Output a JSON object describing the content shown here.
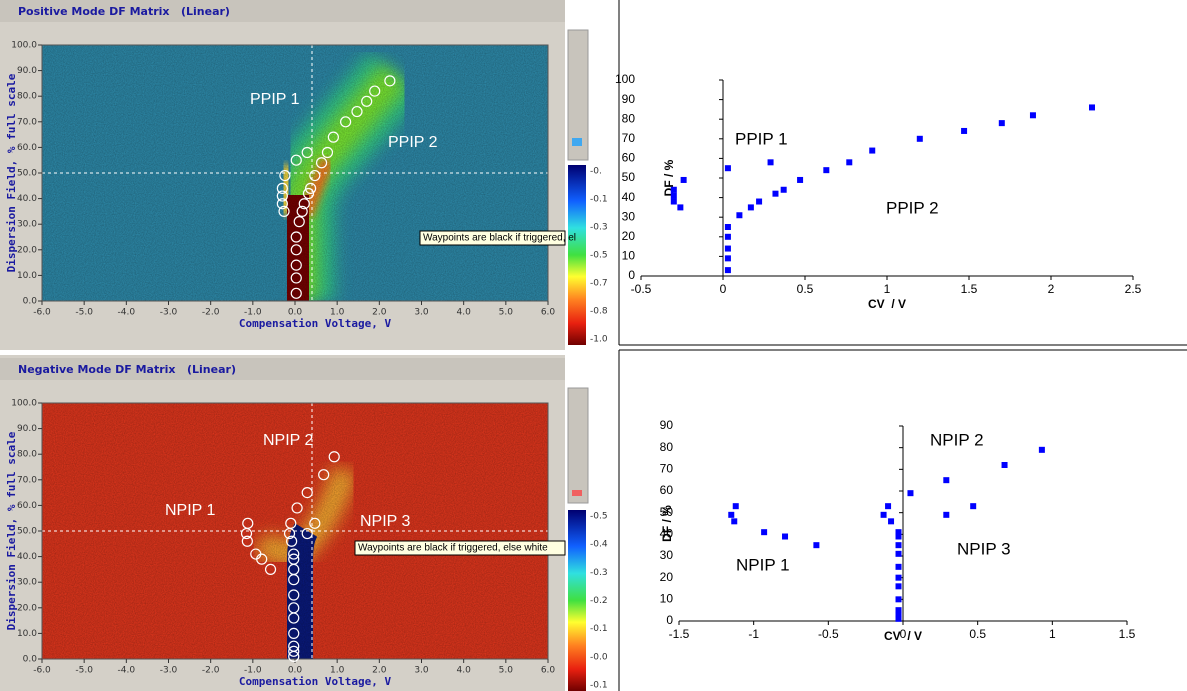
{
  "chart_data": [
    {
      "type": "heatmap",
      "title": "Positive Mode DF Matrix   (Linear)",
      "xlabel": "Compensation Voltage, V",
      "ylabel": "Dispersion Field, % full scale",
      "xlim": [
        -6,
        6
      ],
      "xticks": [
        {
          "value": -6,
          "label": "-6.0"
        },
        {
          "value": -5,
          "label": "-5.0"
        },
        {
          "value": -4,
          "label": "-4.0"
        },
        {
          "value": -3,
          "label": "-3.0"
        },
        {
          "value": -2,
          "label": "-2.0"
        },
        {
          "value": -1,
          "label": "-1.0"
        },
        {
          "value": 0,
          "label": "0.0"
        },
        {
          "value": 1,
          "label": "1.0"
        },
        {
          "value": 2,
          "label": "2.0"
        },
        {
          "value": 3,
          "label": "3.0"
        },
        {
          "value": 4,
          "label": "4.0"
        },
        {
          "value": 5,
          "label": "5.0"
        },
        {
          "value": 6,
          "label": "6.0"
        }
      ],
      "ylim": [
        0,
        100
      ],
      "yticks": [
        {
          "value": 0,
          "label": "0.0"
        },
        {
          "value": 10,
          "label": "10.0"
        },
        {
          "value": 20,
          "label": "20.0"
        },
        {
          "value": 30,
          "label": "30.0"
        },
        {
          "value": 40,
          "label": "40.0"
        },
        {
          "value": 50,
          "label": "50.0"
        },
        {
          "value": 60,
          "label": "60.0"
        },
        {
          "value": 70,
          "label": "70.0"
        },
        {
          "value": 80,
          "label": "80.0"
        },
        {
          "value": 90,
          "label": "90.0"
        },
        {
          "value": 100,
          "label": "100.0"
        }
      ],
      "colorbar_labels": [
        "-0.",
        "-0.1",
        "-0.3",
        "-0.5",
        "-0.7",
        "-0.8",
        "-1.0"
      ],
      "annotations": [
        "PPIP 1",
        "PPIP 2"
      ],
      "tooltip": "Waypoints are black if triggered, el",
      "waypoints": {
        "x": [
          -0.3,
          -0.3,
          -0.3,
          -0.24,
          -0.26,
          0.03,
          0.29,
          0.03,
          0.03,
          0.03,
          0.03,
          0.03,
          0.1,
          0.17,
          0.22,
          0.32,
          0.37,
          0.47,
          0.63,
          0.77,
          0.91,
          1.2,
          1.47,
          1.7,
          1.89,
          2.25
        ],
        "y": [
          41,
          38,
          44,
          49,
          35,
          55,
          58,
          3,
          9,
          14,
          20,
          25,
          31,
          35,
          38,
          42,
          44,
          49,
          54,
          58,
          64,
          70,
          74,
          78,
          82,
          86
        ]
      }
    },
    {
      "type": "scatter",
      "xlabel": "CV  / V",
      "ylabel": "DF / %",
      "color": "#0000ff",
      "xlim": [
        -0.5,
        2.5
      ],
      "xticks": [
        -0.5,
        0,
        0.5,
        1,
        1.5,
        2,
        2.5
      ],
      "ylim": [
        0,
        100
      ],
      "yticks": [
        0,
        10,
        20,
        30,
        40,
        50,
        60,
        70,
        80,
        90,
        100
      ],
      "annotations": [
        "PPIP 1",
        "PPIP 2"
      ],
      "x": [
        -0.3,
        -0.3,
        -0.3,
        -0.24,
        -0.26,
        0.03,
        0.29,
        0.03,
        0.03,
        0.03,
        0.03,
        0.03,
        0.1,
        0.17,
        0.22,
        0.32,
        0.37,
        0.47,
        0.63,
        0.77,
        0.91,
        1.2,
        1.47,
        1.7,
        1.89,
        2.25
      ],
      "y": [
        41,
        38,
        44,
        49,
        35,
        55,
        58,
        3,
        9,
        14,
        20,
        25,
        31,
        35,
        38,
        42,
        44,
        49,
        54,
        58,
        64,
        70,
        74,
        78,
        82,
        86
      ]
    },
    {
      "type": "heatmap",
      "title": "Negative Mode DF Matrix   (Linear)",
      "xlabel": "Compensation Voltage, V",
      "ylabel": "Dispersion Field, % full scale",
      "xlim": [
        -6,
        6
      ],
      "xticks": [
        {
          "value": -6,
          "label": "-6.0"
        },
        {
          "value": -5,
          "label": "-5.0"
        },
        {
          "value": -4,
          "label": "-4.0"
        },
        {
          "value": -3,
          "label": "-3.0"
        },
        {
          "value": -2,
          "label": "-2.0"
        },
        {
          "value": -1,
          "label": "-1.0"
        },
        {
          "value": 0,
          "label": "0.0"
        },
        {
          "value": 1,
          "label": "1.0"
        },
        {
          "value": 2,
          "label": "2.0"
        },
        {
          "value": 3,
          "label": "3.0"
        },
        {
          "value": 4,
          "label": "4.0"
        },
        {
          "value": 5,
          "label": "5.0"
        },
        {
          "value": 6,
          "label": "6.0"
        }
      ],
      "ylim": [
        0,
        100
      ],
      "yticks": [
        {
          "value": 0,
          "label": "0.0"
        },
        {
          "value": 10,
          "label": "10.0"
        },
        {
          "value": 20,
          "label": "20.0"
        },
        {
          "value": 30,
          "label": "30.0"
        },
        {
          "value": 40,
          "label": "40.0"
        },
        {
          "value": 50,
          "label": "50.0"
        },
        {
          "value": 60,
          "label": "60.0"
        },
        {
          "value": 70,
          "label": "70.0"
        },
        {
          "value": 80,
          "label": "80.0"
        },
        {
          "value": 90,
          "label": "90.0"
        },
        {
          "value": 100,
          "label": "100.0"
        }
      ],
      "colorbar_labels": [
        "-0.5",
        "-0.4",
        "-0.3",
        "-0.2",
        "-0.1",
        "-0.0",
        "-0.1"
      ],
      "annotations": [
        "NPIP 1",
        "NPIP 2",
        "NPIP 3"
      ],
      "tooltip": "Waypoints are black if triggered, else white",
      "waypoints": {
        "x": [
          -1.15,
          -1.12,
          -1.13,
          -0.93,
          -0.79,
          -0.58,
          -0.13,
          -0.1,
          -0.08,
          -0.03,
          -0.03,
          -0.03,
          -0.03,
          -0.03,
          -0.03,
          -0.03,
          -0.03,
          -0.03,
          -0.03,
          -0.03,
          0.05,
          0.29,
          0.29,
          0.47,
          0.68,
          0.93
        ],
        "y": [
          49,
          53,
          46,
          41,
          39,
          35,
          49,
          53,
          46,
          41,
          39,
          35,
          31,
          25,
          20,
          16,
          10,
          5,
          3,
          1,
          59,
          65,
          49,
          53,
          72,
          79
        ]
      }
    },
    {
      "type": "scatter",
      "xlabel": "CV  / V",
      "ylabel": "DF / %",
      "color": "#0000ff",
      "xlim": [
        -1.5,
        1.5
      ],
      "xticks": [
        -1.5,
        -1,
        -0.5,
        0,
        0.5,
        1,
        1.5
      ],
      "ylim": [
        0,
        90
      ],
      "yticks": [
        0,
        10,
        20,
        30,
        40,
        50,
        60,
        70,
        80,
        90
      ],
      "annotations": [
        "NPIP 1",
        "NPIP 2",
        "NPIP 3"
      ],
      "x": [
        -1.15,
        -1.12,
        -1.13,
        -0.93,
        -0.79,
        -0.58,
        -0.13,
        -0.1,
        -0.08,
        -0.03,
        -0.03,
        -0.03,
        -0.03,
        -0.03,
        -0.03,
        -0.03,
        -0.03,
        -0.03,
        -0.03,
        -0.03,
        0.05,
        0.29,
        0.29,
        0.47,
        0.68,
        0.93
      ],
      "y": [
        49,
        53,
        46,
        41,
        39,
        35,
        49,
        53,
        46,
        41,
        39,
        35,
        31,
        25,
        20,
        16,
        10,
        5,
        3,
        1,
        59,
        65,
        49,
        53,
        72,
        79
      ]
    }
  ]
}
